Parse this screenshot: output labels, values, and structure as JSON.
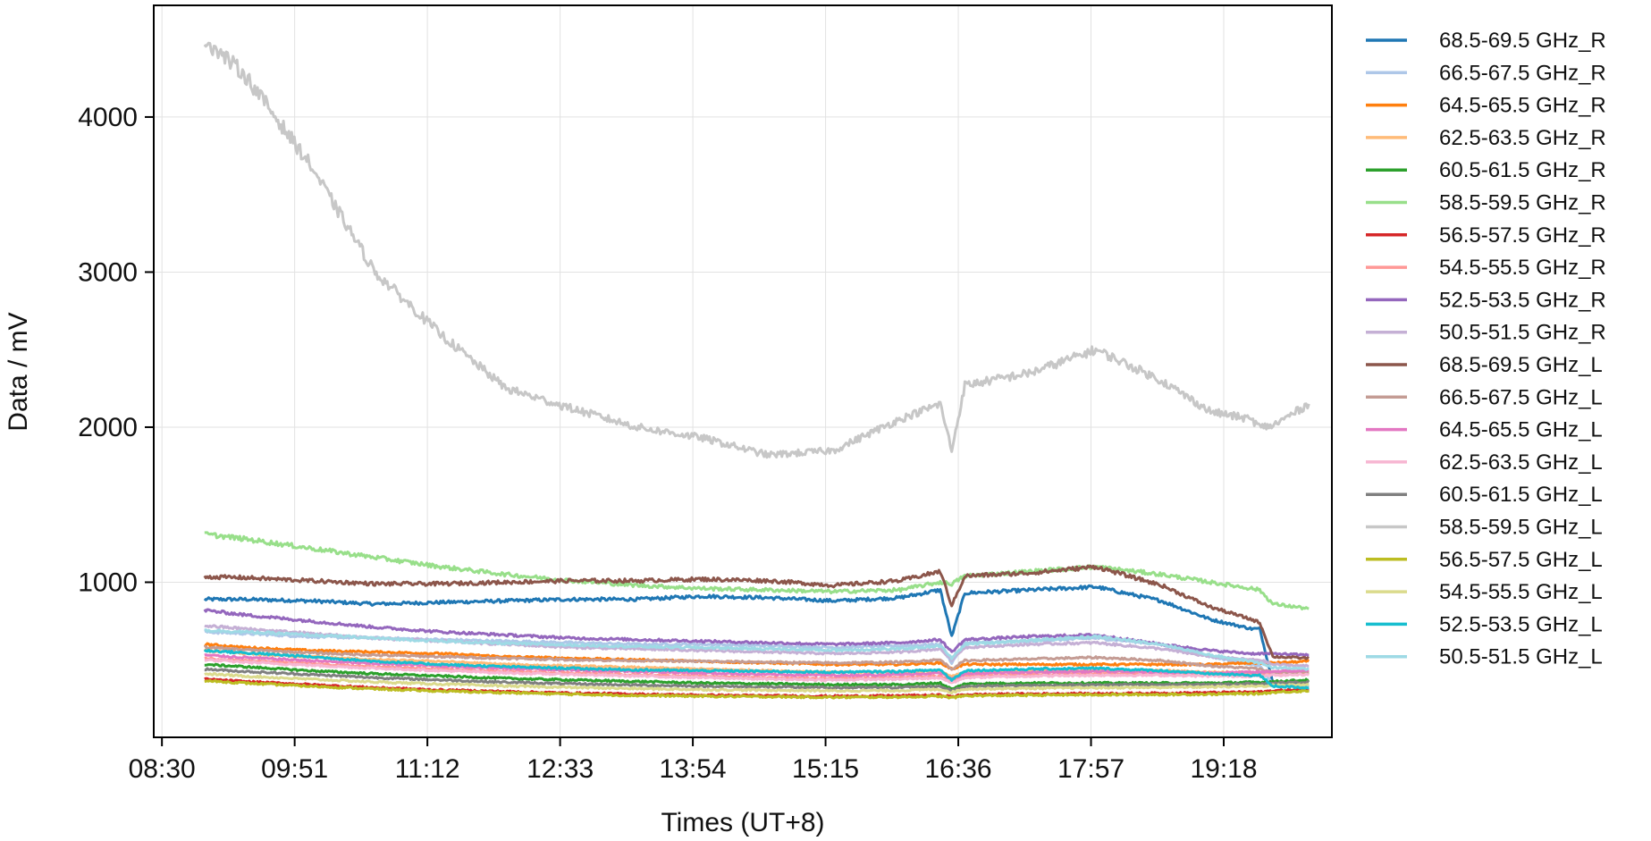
{
  "chart_data": {
    "type": "line",
    "title": "",
    "xlabel": "Times (UT+8)",
    "ylabel": "Data / mV",
    "x_tick_labels": [
      "08:30",
      "09:51",
      "11:12",
      "12:33",
      "13:54",
      "15:15",
      "16:36",
      "17:57",
      "19:18"
    ],
    "x_tick_minutes": [
      510,
      591,
      672,
      753,
      834,
      915,
      996,
      1077,
      1158
    ],
    "xlim_minutes": [
      505,
      1224
    ],
    "y_ticks": [
      1000,
      2000,
      3000,
      4000
    ],
    "ylim": [
      0,
      4720
    ],
    "grid": true,
    "legend_position": "outside-right",
    "x_minutes": [
      536,
      560,
      600,
      640,
      680,
      720,
      760,
      800,
      840,
      880,
      920,
      960,
      985,
      992,
      1000,
      1040,
      1080,
      1120,
      1150,
      1175,
      1180,
      1188,
      1210
    ],
    "series": [
      {
        "name": "68.5-69.5 GHz_R",
        "color": "#1f77b4",
        "values": [
          890,
          890,
          880,
          860,
          870,
          880,
          890,
          890,
          910,
          900,
          880,
          900,
          950,
          650,
          930,
          950,
          970,
          880,
          760,
          700,
          700,
          350,
          330
        ]
      },
      {
        "name": "66.5-67.5 GHz_R",
        "color": "#aec7e8",
        "values": [
          680,
          670,
          650,
          640,
          630,
          620,
          610,
          600,
          600,
          590,
          580,
          590,
          600,
          480,
          610,
          620,
          640,
          600,
          520,
          470,
          460,
          340,
          330
        ]
      },
      {
        "name": "64.5-65.5 GHz_R",
        "color": "#ff7f0e",
        "values": [
          600,
          580,
          560,
          550,
          540,
          520,
          510,
          500,
          490,
          480,
          470,
          470,
          480,
          440,
          470,
          470,
          470,
          470,
          470,
          480,
          480,
          480,
          490
        ]
      },
      {
        "name": "62.5-63.5 GHz_R",
        "color": "#ffbb78",
        "values": [
          560,
          540,
          520,
          500,
          490,
          470,
          460,
          450,
          440,
          430,
          420,
          420,
          430,
          390,
          420,
          430,
          430,
          430,
          420,
          420,
          420,
          420,
          430
        ]
      },
      {
        "name": "60.5-61.5 GHz_R",
        "color": "#2ca02c",
        "values": [
          470,
          455,
          430,
          410,
          395,
          380,
          370,
          360,
          350,
          345,
          340,
          340,
          350,
          310,
          345,
          350,
          350,
          350,
          350,
          355,
          355,
          360,
          370
        ]
      },
      {
        "name": "58.5-59.5 GHz_R",
        "color": "#98df8a",
        "values": [
          1310,
          1280,
          1220,
          1160,
          1100,
          1050,
          1010,
          980,
          960,
          950,
          940,
          950,
          1000,
          990,
          1040,
          1070,
          1100,
          1050,
          1000,
          960,
          950,
          860,
          830
        ]
      },
      {
        "name": "56.5-57.5 GHz_R",
        "color": "#d62728",
        "values": [
          375,
          360,
          340,
          320,
          305,
          295,
          285,
          278,
          272,
          268,
          265,
          268,
          272,
          262,
          275,
          280,
          282,
          284,
          288,
          292,
          292,
          300,
          310
        ]
      },
      {
        "name": "54.5-55.5 GHz_R",
        "color": "#ff9896",
        "values": [
          510,
          495,
          475,
          455,
          440,
          425,
          415,
          405,
          395,
          385,
          380,
          385,
          395,
          355,
          395,
          405,
          410,
          410,
          405,
          405,
          405,
          410,
          415
        ]
      },
      {
        "name": "52.5-53.5 GHz_R",
        "color": "#9467bd",
        "values": [
          820,
          790,
          750,
          710,
          680,
          660,
          640,
          630,
          620,
          610,
          600,
          610,
          630,
          550,
          630,
          650,
          660,
          600,
          560,
          540,
          540,
          540,
          530
        ]
      },
      {
        "name": "50.5-51.5 GHz_R",
        "color": "#c5b0d5",
        "values": [
          720,
          700,
          670,
          640,
          620,
          600,
          580,
          570,
          560,
          550,
          540,
          550,
          570,
          500,
          580,
          600,
          610,
          570,
          520,
          500,
          500,
          470,
          460
        ]
      },
      {
        "name": "68.5-69.5 GHz_L",
        "color": "#8c564b",
        "values": [
          1035,
          1030,
          1010,
          990,
          990,
          1000,
          1010,
          1010,
          1020,
          1010,
          980,
          1010,
          1070,
          850,
          1040,
          1060,
          1100,
          980,
          840,
          760,
          740,
          520,
          510
        ]
      },
      {
        "name": "66.5-67.5 GHz_L",
        "color": "#c49c94",
        "values": [
          580,
          565,
          545,
          530,
          520,
          510,
          500,
          495,
          490,
          485,
          480,
          485,
          500,
          440,
          495,
          505,
          515,
          495,
          460,
          445,
          440,
          420,
          420
        ]
      },
      {
        "name": "64.5-65.5 GHz_L",
        "color": "#e377c2",
        "values": [
          530,
          515,
          495,
          475,
          460,
          445,
          435,
          425,
          415,
          405,
          400,
          405,
          415,
          375,
          410,
          420,
          425,
          420,
          415,
          420,
          420,
          425,
          430
        ]
      },
      {
        "name": "62.5-63.5 GHz_L",
        "color": "#f7b6d2",
        "values": [
          500,
          485,
          465,
          445,
          430,
          415,
          405,
          395,
          385,
          375,
          370,
          375,
          385,
          350,
          385,
          395,
          400,
          400,
          395,
          395,
          395,
          400,
          405
        ]
      },
      {
        "name": "60.5-61.5 GHz_L",
        "color": "#7f7f7f",
        "values": [
          440,
          425,
          405,
          385,
          370,
          355,
          345,
          337,
          330,
          325,
          320,
          322,
          330,
          300,
          330,
          335,
          338,
          340,
          340,
          345,
          345,
          350,
          355
        ]
      },
      {
        "name": "58.5-59.5 GHz_L",
        "color": "#c7c7c7",
        "values": [
          4500,
          4280,
          3700,
          3000,
          2600,
          2250,
          2120,
          2000,
          1930,
          1820,
          1850,
          2050,
          2150,
          1850,
          2270,
          2350,
          2500,
          2300,
          2100,
          2050,
          2000,
          2010,
          2150
        ]
      },
      {
        "name": "56.5-57.5 GHz_L",
        "color": "#bcbd22",
        "values": [
          365,
          350,
          330,
          312,
          298,
          288,
          278,
          270,
          265,
          262,
          258,
          260,
          265,
          255,
          268,
          272,
          275,
          276,
          278,
          282,
          282,
          290,
          300
        ]
      },
      {
        "name": "54.5-55.5 GHz_L",
        "color": "#dbdb8d",
        "values": [
          410,
          395,
          375,
          357,
          343,
          331,
          322,
          314,
          308,
          304,
          300,
          302,
          310,
          290,
          312,
          316,
          320,
          322,
          325,
          330,
          330,
          335,
          340
        ]
      },
      {
        "name": "52.5-53.5 GHz_L",
        "color": "#17becf",
        "values": [
          560,
          545,
          520,
          490,
          470,
          455,
          445,
          435,
          430,
          425,
          420,
          425,
          435,
          370,
          430,
          440,
          445,
          430,
          410,
          400,
          400,
          330,
          320
        ]
      },
      {
        "name": "50.5-51.5 GHz_L",
        "color": "#9edae5",
        "values": [
          690,
          680,
          660,
          640,
          620,
          605,
          595,
          585,
          578,
          570,
          562,
          570,
          590,
          510,
          600,
          625,
          650,
          600,
          530,
          490,
          480,
          450,
          440
        ]
      }
    ]
  }
}
